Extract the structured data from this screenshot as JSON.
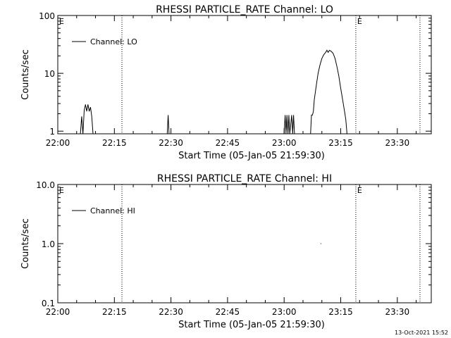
{
  "footer": {
    "timestamp": "13-Oct-2021 15:52"
  },
  "chart_data": [
    {
      "type": "line",
      "title": "RHESSI PARTICLE_RATE Channel: LO",
      "xlabel": "Start Time (05-Jan-05 21:59:30)",
      "ylabel": "Counts/sec",
      "y_scale": "log",
      "xlim": [
        "22:00",
        "23:39"
      ],
      "ylim": [
        0.9,
        100
      ],
      "x_ticks": [
        "22:00",
        "22:15",
        "22:30",
        "22:45",
        "23:00",
        "23:15",
        "23:30"
      ],
      "y_ticks": [
        "1",
        "10",
        "100"
      ],
      "legend": {
        "position": "top-left",
        "entries": [
          "Channel: LO"
        ]
      },
      "event_markers": [
        {
          "time": "22:00",
          "label": "E"
        },
        {
          "time": "22:17",
          "label": ""
        },
        {
          "time": "23:19",
          "label": "E"
        },
        {
          "time": "23:36",
          "label": ""
        }
      ],
      "series": [
        {
          "name": "Channel: LO",
          "points": [
            [
              "22:06:00",
              0.9
            ],
            [
              "22:06:20",
              1.8
            ],
            [
              "22:06:40",
              0.9
            ],
            [
              "22:07:00",
              2.3
            ],
            [
              "22:07:20",
              2.9
            ],
            [
              "22:07:40",
              2.2
            ],
            [
              "22:08:00",
              2.9
            ],
            [
              "22:08:20",
              2.2
            ],
            [
              "22:08:40",
              2.6
            ],
            [
              "22:09:00",
              1.8
            ],
            [
              "22:09:20",
              0.9
            ],
            [
              "22:29:00",
              0.9
            ],
            [
              "22:29:15",
              1.9
            ],
            [
              "22:29:30",
              0.9
            ],
            [
              "23:00:00",
              0.9
            ],
            [
              "23:00:15",
              1.9
            ],
            [
              "23:00:30",
              0.9
            ],
            [
              "23:00:45",
              1.9
            ],
            [
              "23:01:00",
              0.9
            ],
            [
              "23:01:15",
              1.9
            ],
            [
              "23:01:30",
              0.9
            ],
            [
              "23:02:00",
              1.9
            ],
            [
              "23:02:15",
              0.9
            ],
            [
              "23:02:30",
              1.9
            ],
            [
              "23:02:45",
              0.9
            ],
            [
              "23:07:00",
              0.9
            ],
            [
              "23:07:15",
              1.9
            ],
            [
              "23:07:30",
              1.9
            ],
            [
              "23:07:45",
              2.2
            ],
            [
              "23:08:00",
              3.5
            ],
            [
              "23:08:30",
              6.0
            ],
            [
              "23:09:00",
              10.0
            ],
            [
              "23:09:30",
              14.0
            ],
            [
              "23:10:00",
              18.0
            ],
            [
              "23:10:30",
              21.0
            ],
            [
              "23:11:00",
              23.0
            ],
            [
              "23:11:20",
              25.0
            ],
            [
              "23:11:40",
              23.0
            ],
            [
              "23:12:00",
              25.0
            ],
            [
              "23:12:30",
              24.0
            ],
            [
              "23:13:00",
              22.0
            ],
            [
              "23:13:30",
              18.0
            ],
            [
              "23:14:00",
              13.0
            ],
            [
              "23:14:30",
              9.0
            ],
            [
              "23:15:00",
              5.5
            ],
            [
              "23:15:30",
              3.5
            ],
            [
              "23:16:00",
              2.2
            ],
            [
              "23:16:20",
              1.6
            ],
            [
              "23:16:40",
              0.9
            ]
          ]
        }
      ]
    },
    {
      "type": "line",
      "title": "RHESSI PARTICLE_RATE Channel: HI",
      "xlabel": "Start Time (05-Jan-05 21:59:30)",
      "ylabel": "Counts/sec",
      "y_scale": "log",
      "xlim": [
        "22:00",
        "23:39"
      ],
      "ylim": [
        0.1,
        10
      ],
      "x_ticks": [
        "22:00",
        "22:15",
        "22:30",
        "22:45",
        "23:00",
        "23:15",
        "23:30"
      ],
      "y_ticks": [
        "0.1",
        "1.0",
        "10.0"
      ],
      "legend": {
        "position": "top-left",
        "entries": [
          "Channel: HI"
        ]
      },
      "event_markers": [
        {
          "time": "22:00",
          "label": "E"
        },
        {
          "time": "22:17",
          "label": ""
        },
        {
          "time": "23:19",
          "label": "E"
        },
        {
          "time": "23:36",
          "label": ""
        }
      ],
      "series": [
        {
          "name": "Channel: HI",
          "points": [
            [
              "23:09:40",
              1.0
            ],
            [
              "23:09:50",
              1.0
            ]
          ]
        }
      ]
    }
  ]
}
